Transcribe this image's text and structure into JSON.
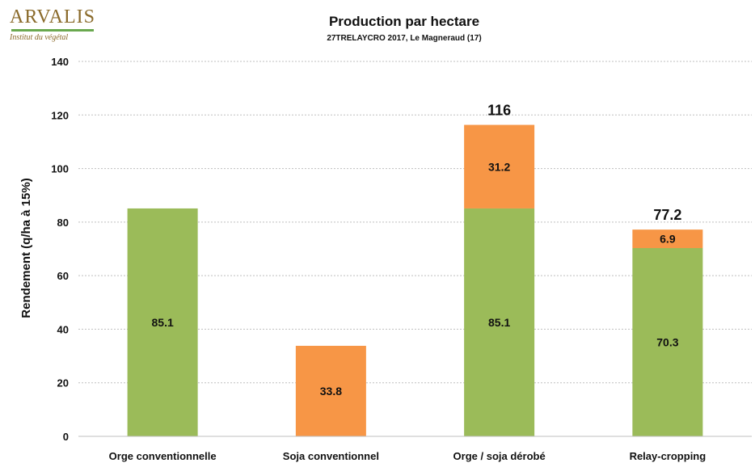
{
  "logo": {
    "name": "ARVALIS",
    "tagline": "Institut du végétal"
  },
  "chart_data": {
    "type": "bar",
    "stacked": true,
    "title": "Production  par hectare",
    "subtitle": "27TRELAYCRO 2017, Le Magneraud (17)",
    "xlabel": "",
    "ylabel": "Rendement (q/ha à 15%)",
    "ylim": [
      0,
      140
    ],
    "yticks": [
      0,
      20,
      40,
      60,
      80,
      100,
      120,
      140
    ],
    "grid": true,
    "categories": [
      "Orge conventionnelle",
      "Soja conventionnel",
      "Orge / soja dérobé",
      "Relay-cropping"
    ],
    "series": [
      {
        "color": "#9bbb59",
        "values": [
          85.1,
          0,
          85.1,
          70.3
        ],
        "labels": [
          "85.1",
          "",
          "85.1",
          "70.3"
        ]
      },
      {
        "color": "#f79646",
        "values": [
          0,
          33.8,
          31.2,
          6.9
        ],
        "labels": [
          "",
          "33.8",
          "31.2",
          "6.9"
        ]
      }
    ],
    "totals": [
      "",
      "",
      "116",
      "77.2"
    ]
  }
}
